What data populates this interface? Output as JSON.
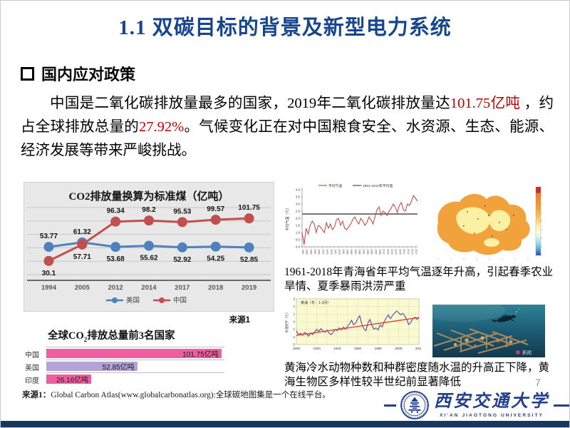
{
  "slide": {
    "title": "1.1 双碳目标的背景及新型电力系统",
    "page_number": "7"
  },
  "section": {
    "heading": "国内应对政策"
  },
  "paragraph": {
    "part1": "中国是二氧化碳排放量最多的国家，2019年二氧化碳排放量达",
    "highlight1": "101.75亿吨",
    "part2": " ，约占全球排放总量的",
    "highlight2": "27.92%",
    "part3": "。气候变化正在对中国粮食安全、水资源、生态、能源、经济发展等带来严峻挑战。"
  },
  "source_label": "来源1",
  "captions": {
    "qinghai": "1961-2018年青海省年平均气温逐年升高，引起春季农业旱情、夏季暴雨洪涝严重",
    "yellow_sea": "黄海冷水动物种数和种群密度随水温的升高正下降，黄海生物区多样性较半世纪前显著降低"
  },
  "footer": {
    "label": "来源1：",
    "rest": "Global Carbon Atlas(www.globalcarbonatlas.org):全球碳地图集是一个在线平台。"
  },
  "logo": {
    "cn": "西安交通大学",
    "en": "XI'AN JIAOTONG UNIVERSITY"
  },
  "photo": {
    "watermark": "新闻"
  },
  "colors": {
    "title_blue": "#17468e",
    "highlight_red": "#c00000",
    "bottom_bar_navy": "#17375e",
    "logo_blue": "#23408f"
  },
  "chart_data": [
    {
      "id": "co2_line",
      "type": "line",
      "title": "CO2排放量换算为标准煤（亿吨）",
      "categories": [
        "1994",
        "2005",
        "2012",
        "2014",
        "2017",
        "2018",
        "2019"
      ],
      "series": [
        {
          "name": "美国",
          "color": "#4f81bd",
          "values": [
            53.77,
            61.32,
            53.68,
            55.62,
            52.92,
            54.25,
            52.85
          ]
        },
        {
          "name": "中国",
          "color": "#c0504d",
          "values": [
            30.1,
            57.71,
            96.34,
            98.2,
            95.53,
            99.57,
            101.75
          ]
        }
      ],
      "ylim": [
        7,
        120
      ],
      "legend_position": "bottom",
      "grid": true,
      "background": "#e8e8e8"
    },
    {
      "id": "top3_bar",
      "type": "bar",
      "title_pre": "全球CO",
      "title_sub": "2",
      "title_post": "排放总量前3名国家",
      "categories": [
        "中国",
        "美国",
        "印度"
      ],
      "values": [
        101.75,
        52.85,
        26.16
      ],
      "value_labels": [
        "101.75亿吨",
        "52.85亿吨",
        "26.16亿吨"
      ],
      "bar_colors": [
        "#ef5fa0",
        "#b3a3d6",
        "#ef5fa0"
      ],
      "xlim": [
        0,
        103.5
      ]
    },
    {
      "id": "qinghai_temp",
      "type": "line",
      "legend": [
        "平均气温",
        "1961-2010年平均值"
      ],
      "ylabel": "平均气温（℃）",
      "ylim": [
        0,
        4
      ],
      "yticks": [
        0.0,
        0.5,
        1.0,
        1.5,
        2.0,
        2.5,
        3.0,
        3.5,
        4.0
      ],
      "x_start": 1961,
      "x_end": 2018,
      "mean_value": 2.3,
      "line_color": "#c0504d",
      "mean_color": "#4d4d4d",
      "values": [
        1.0,
        0.15,
        1.3,
        0.9,
        1.5,
        1.8,
        1.6,
        1.0,
        1.5,
        1.4,
        1.2,
        1.0,
        1.7,
        1.3,
        1.6,
        1.2,
        1.4,
        1.9,
        2.0,
        1.5,
        1.8,
        1.3,
        1.2,
        1.4,
        1.6,
        1.9,
        2.1,
        1.8,
        1.6,
        2.0,
        1.8,
        1.5,
        1.7,
        2.1,
        1.9,
        1.6,
        2.1,
        2.6,
        2.8,
        2.2,
        2.5,
        2.4,
        2.2,
        2.5,
        2.7,
        3.0,
        2.8,
        2.4,
        2.9,
        3.1,
        2.6,
        2.5,
        3.0,
        2.9,
        3.2,
        3.6,
        3.4,
        3.2
      ]
    },
    {
      "id": "yellowsea_sst",
      "type": "line",
      "legend": "黄海（冬：1-3月）",
      "ylabel": "水温距平（℃）",
      "ylim": [
        -3,
        3
      ],
      "yticks": [
        -3,
        -2,
        -1,
        0,
        1,
        2,
        3
      ],
      "xticks": [
        1900,
        1920,
        1940,
        1960,
        1980,
        2000,
        2020
      ],
      "x_start": 1900,
      "x_end": 2020,
      "x_step": 2,
      "trend": [
        -1.8,
        0.55
      ],
      "line_color": "#5b50a5",
      "trend_color": "#d9442b",
      "background": "#fafad2",
      "values": [
        -1.2,
        -1.7,
        -1.5,
        -1.8,
        -1.4,
        -1.6,
        -1.9,
        -1.5,
        -1.7,
        -1.3,
        -1.0,
        -1.3,
        -0.9,
        -1.2,
        -1.4,
        -1.1,
        -1.5,
        -1.7,
        -1.4,
        -1.0,
        -1.2,
        -0.8,
        -1.1,
        -0.7,
        -1.0,
        -0.6,
        -0.3,
        0.2,
        -0.4,
        -0.2,
        0.4,
        0.8,
        -0.3,
        -0.9,
        -1.2,
        -0.2,
        0.3,
        -0.5,
        -1.0,
        -0.8,
        -1.1,
        -0.4,
        -0.7,
        0.0,
        0.5,
        0.9,
        0.4,
        0.8,
        1.1,
        1.4,
        1.2,
        0.9,
        1.1,
        0.8,
        0.3,
        -0.4,
        -0.1,
        0.4,
        0.6,
        0.3,
        0.5
      ]
    }
  ]
}
